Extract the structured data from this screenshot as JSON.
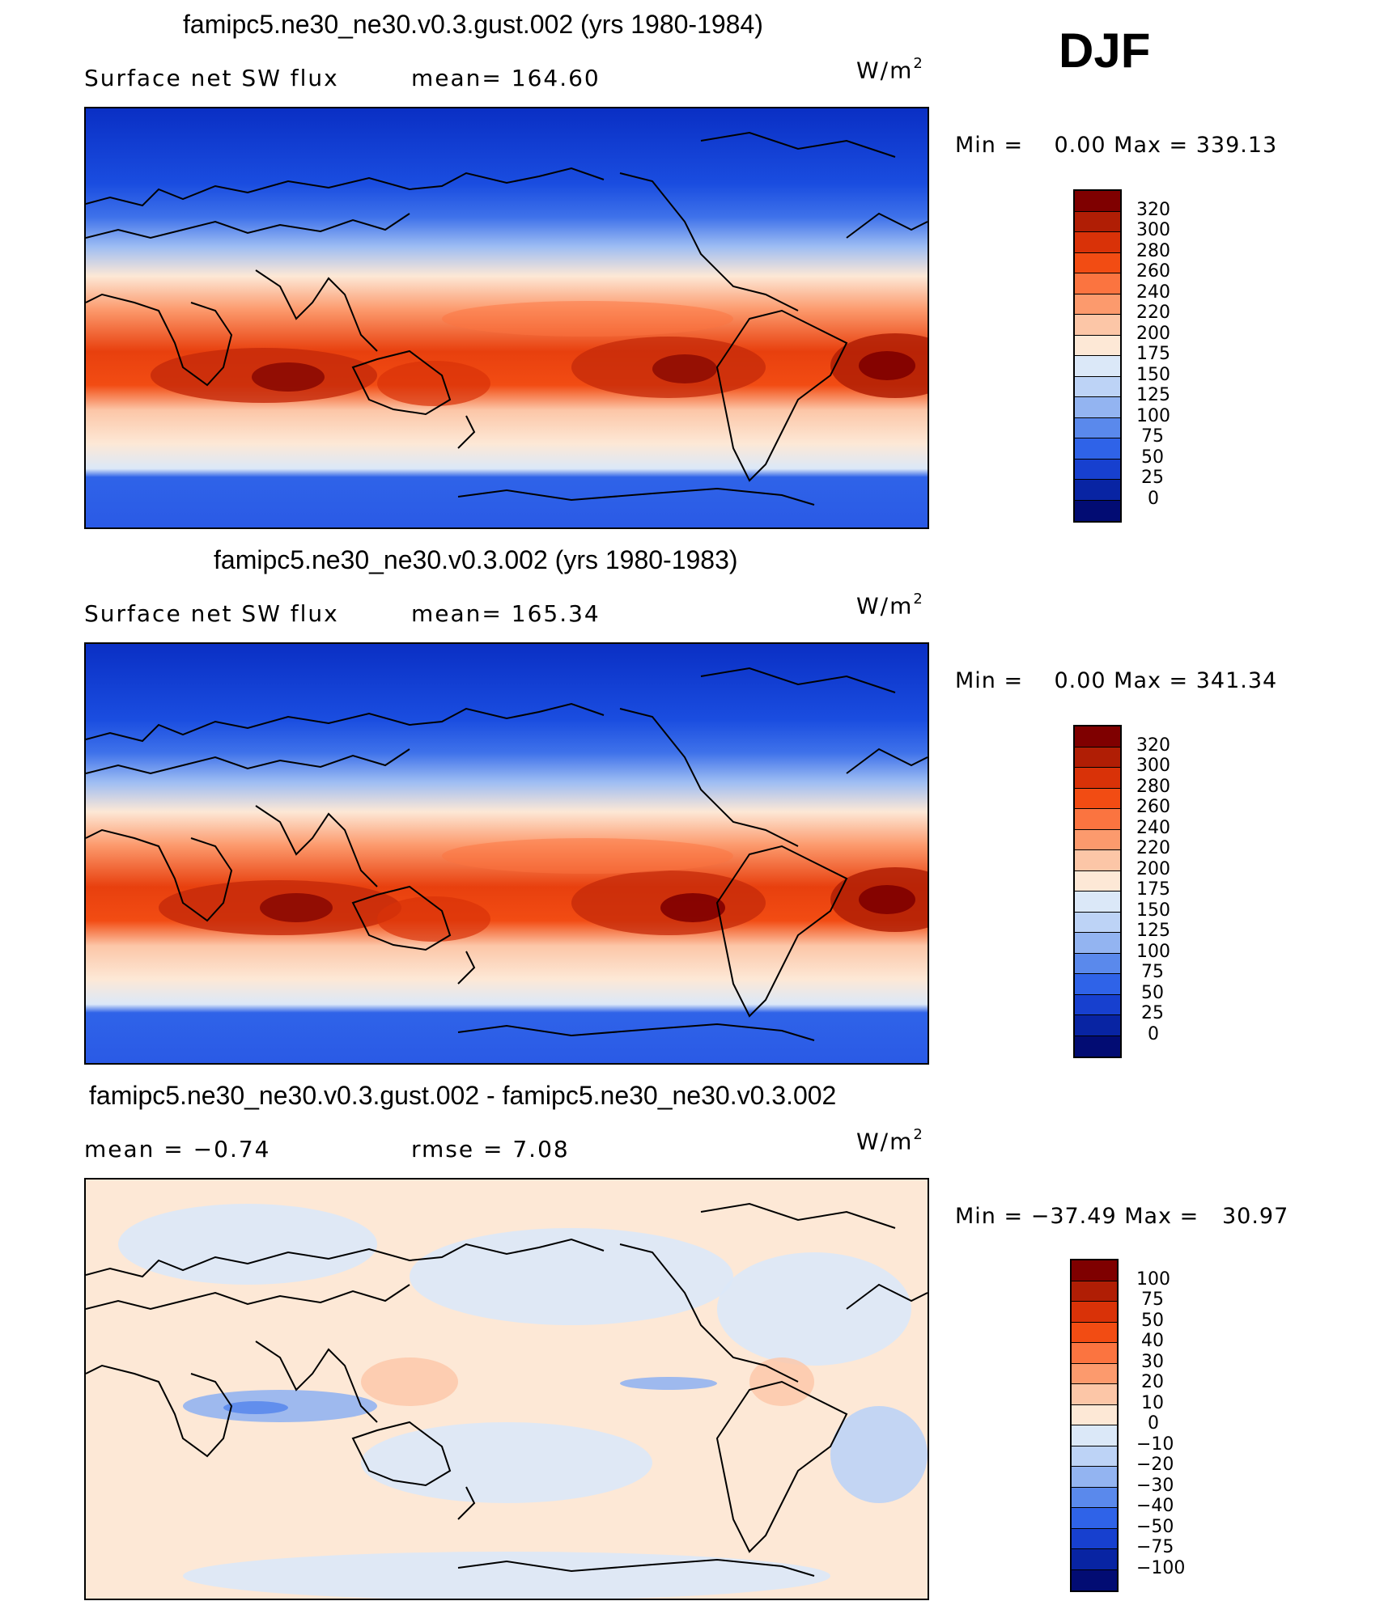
{
  "season": "DJF",
  "panels": [
    {
      "title": "famipc5.ne30_ne30.v0.3.gust.002 (yrs 1980-1984)",
      "left_text": "Surface net SW flux",
      "mid_text": "mean= 164.60",
      "units": "W/m",
      "units_exp": "2",
      "minmax": "Min =    0.00 Max = 339.13",
      "colorbar": {
        "labels": [
          "320",
          "300",
          "280",
          "260",
          "240",
          "220",
          "200",
          "175",
          "150",
          "125",
          "100",
          "75",
          "50",
          "25",
          "0"
        ],
        "colors": [
          "#7f0000",
          "#b01e05",
          "#d93208",
          "#f24c13",
          "#fb7440",
          "#fc9a6d",
          "#fcc6a7",
          "#fde8d6",
          "#dbe8f8",
          "#bdd3f6",
          "#93b4f1",
          "#5a89ec",
          "#2f63e8",
          "#1740cf",
          "#0824a3",
          "#020c73"
        ]
      }
    },
    {
      "title": "famipc5.ne30_ne30.v0.3.002 (yrs 1980-1983)",
      "left_text": "Surface net SW flux",
      "mid_text": "mean= 165.34",
      "units": "W/m",
      "units_exp": "2",
      "minmax": "Min =    0.00 Max = 341.34",
      "colorbar": {
        "labels": [
          "320",
          "300",
          "280",
          "260",
          "240",
          "220",
          "200",
          "175",
          "150",
          "125",
          "100",
          "75",
          "50",
          "25",
          "0"
        ],
        "colors": [
          "#7f0000",
          "#b01e05",
          "#d93208",
          "#f24c13",
          "#fb7440",
          "#fc9a6d",
          "#fcc6a7",
          "#fde8d6",
          "#dbe8f8",
          "#bdd3f6",
          "#93b4f1",
          "#5a89ec",
          "#2f63e8",
          "#1740cf",
          "#0824a3",
          "#020c73"
        ]
      }
    },
    {
      "title": "famipc5.ne30_ne30.v0.3.gust.002 - famipc5.ne30_ne30.v0.3.002",
      "left_text": "mean =   −0.74",
      "mid_text": "rmse =    7.08",
      "units": "W/m",
      "units_exp": "2",
      "minmax": "Min = −37.49 Max =   30.97",
      "colorbar": {
        "labels": [
          "100",
          "75",
          "50",
          "40",
          "30",
          "20",
          "10",
          "0",
          "−10",
          "−20",
          "−30",
          "−40",
          "−50",
          "−75",
          "−100"
        ],
        "colors": [
          "#7f0000",
          "#b01e05",
          "#d93208",
          "#f24c13",
          "#fb7440",
          "#fc9a6d",
          "#fcc6a7",
          "#fde8d6",
          "#dbe8f8",
          "#bdd3f6",
          "#93b4f1",
          "#5a89ec",
          "#2f63e8",
          "#1740cf",
          "#0824a3",
          "#020c73"
        ]
      }
    }
  ]
}
